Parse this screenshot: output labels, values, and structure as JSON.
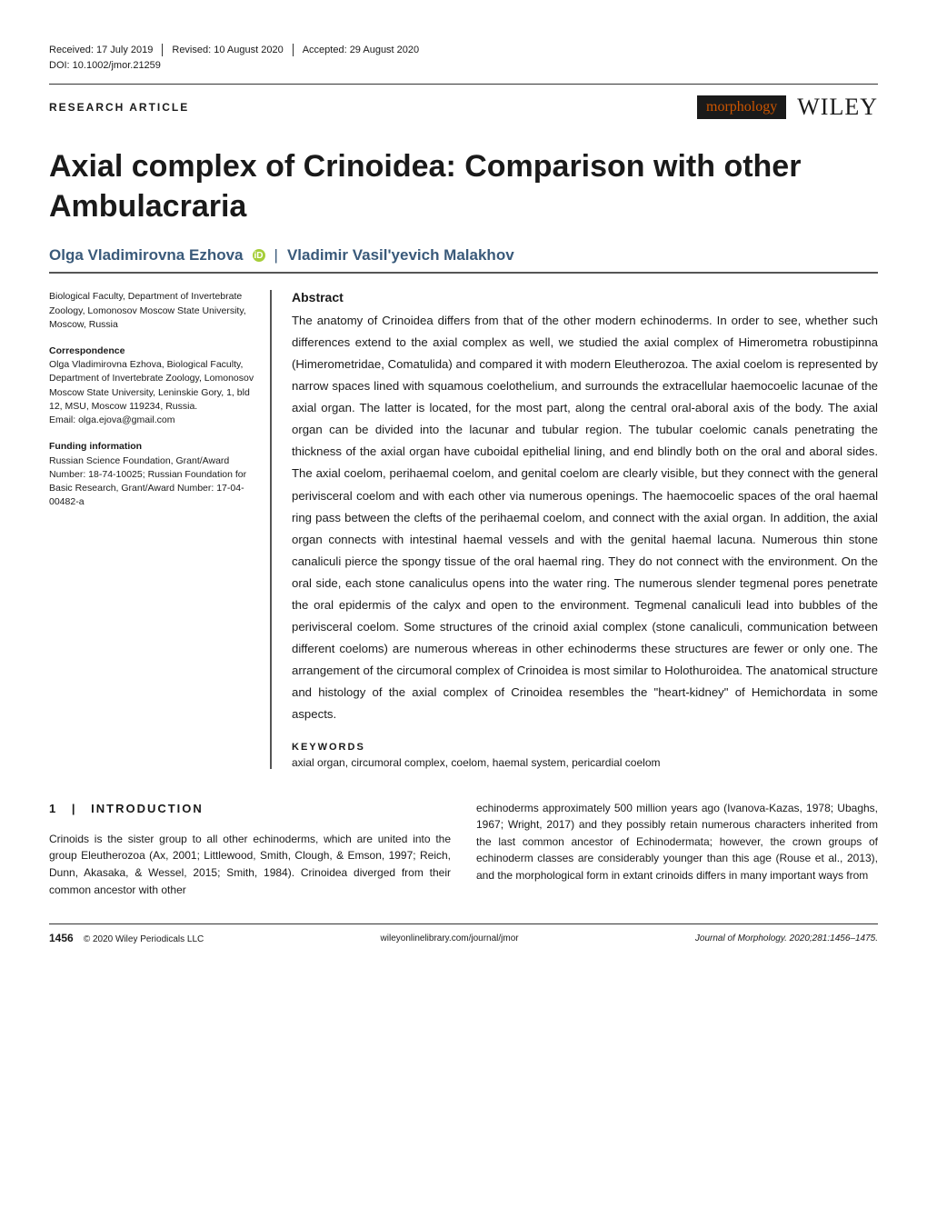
{
  "header": {
    "received_label": "Received:",
    "received_date": "17 July 2019",
    "revised_label": "Revised:",
    "revised_date": "10 August 2020",
    "accepted_label": "Accepted:",
    "accepted_date": "29 August 2020",
    "doi": "DOI: 10.1002/jmor.21259"
  },
  "article_type": "RESEARCH ARTICLE",
  "brand": {
    "journal": "morphology",
    "publisher": "WILEY"
  },
  "title": "Axial complex of Crinoidea: Comparison with other Ambulacraria",
  "authors": {
    "a1": "Olga Vladimirovna Ezhova",
    "a2": "Vladimir Vasil'yevich Malakhov"
  },
  "left": {
    "affiliation": "Biological Faculty, Department of Invertebrate Zoology, Lomonosov Moscow State University, Moscow, Russia",
    "correspondence_heading": "Correspondence",
    "correspondence": "Olga Vladimirovna Ezhova, Biological Faculty, Department of Invertebrate Zoology, Lomonosov Moscow State University, Leninskie Gory, 1, bld 12, MSU, Moscow 119234, Russia.",
    "email_label": "Email: ",
    "email": "olga.ejova@gmail.com",
    "funding_heading": "Funding information",
    "funding": "Russian Science Foundation, Grant/Award Number: 18-74-10025; Russian Foundation for Basic Research, Grant/Award Number: 17-04-00482-a"
  },
  "abstract": {
    "heading": "Abstract",
    "text": "The anatomy of Crinoidea differs from that of the other modern echinoderms. In order to see, whether such differences extend to the axial complex as well, we studied the axial complex of Himerometra robustipinna (Himerometridae, Comatulida) and compared it with modern Eleutherozoa. The axial coelom is represented by narrow spaces lined with squamous coelothelium, and surrounds the extracellular haemocoelic lacunae of the axial organ. The latter is located, for the most part, along the central oral-aboral axis of the body. The axial organ can be divided into the lacunar and tubular region. The tubular coelomic canals penetrating the thickness of the axial organ have cuboidal epithelial lining, and end blindly both on the oral and aboral sides. The axial coelom, perihaemal coelom, and genital coelom are clearly visible, but they connect with the general perivisceral coelom and with each other via numerous openings. The haemocoelic spaces of the oral haemal ring pass between the clefts of the perihaemal coelom, and connect with the axial organ. In addition, the axial organ connects with intestinal haemal vessels and with the genital haemal lacuna. Numerous thin stone canaliculi pierce the spongy tissue of the oral haemal ring. They do not connect with the environment. On the oral side, each stone canaliculus opens into the water ring. The numerous slender tegmenal pores penetrate the oral epidermis of the calyx and open to the environment. Tegmenal canaliculi lead into bubbles of the perivisceral coelom. Some structures of the crinoid axial complex (stone canaliculi, communication between different coeloms) are numerous whereas in other echinoderms these structures are fewer or only one. The arrangement of the circumoral complex of Crinoidea is most similar to Holothuroidea. The anatomical structure and histology of the axial complex of Crinoidea resembles the \"heart-kidney\" of Hemichordata in some aspects."
  },
  "keywords": {
    "heading": "KEYWORDS",
    "text": "axial organ, circumoral complex, coelom, haemal system, pericardial coelom"
  },
  "intro": {
    "heading_num": "1",
    "heading": "INTRODUCTION",
    "col1": "Crinoids is the sister group to all other echinoderms, which are united into the group Eleutherozoa (Ax, 2001; Littlewood, Smith, Clough, & Emson, 1997; Reich, Dunn, Akasaka, & Wessel, 2015; Smith, 1984). Crinoidea diverged from their common ancestor with other",
    "col2": "echinoderms approximately 500 million years ago (Ivanova-Kazas, 1978; Ubaghs, 1967; Wright, 2017) and they possibly retain numerous characters inherited from the last common ancestor of Echinodermata; however, the crown groups of echinoderm classes are considerably younger than this age (Rouse et al., 2013), and the morphological form in extant crinoids differs in many important ways from"
  },
  "footer": {
    "page": "1456",
    "copyright": "© 2020 Wiley Periodicals LLC",
    "url": "wileyonlinelibrary.com/journal/jmor",
    "citation": "Journal of Morphology. 2020;281:1456–1475."
  },
  "colors": {
    "author_color": "#3a5a7a",
    "brand_bg": "#1a1a1a",
    "brand_fg": "#cc5500",
    "orcid_bg": "#a6ce39",
    "text": "#1a1a1a"
  },
  "typography": {
    "title_size": 34,
    "author_size": 17,
    "abstract_size": 13.2,
    "body_size": 12,
    "meta_size": 10.5
  }
}
